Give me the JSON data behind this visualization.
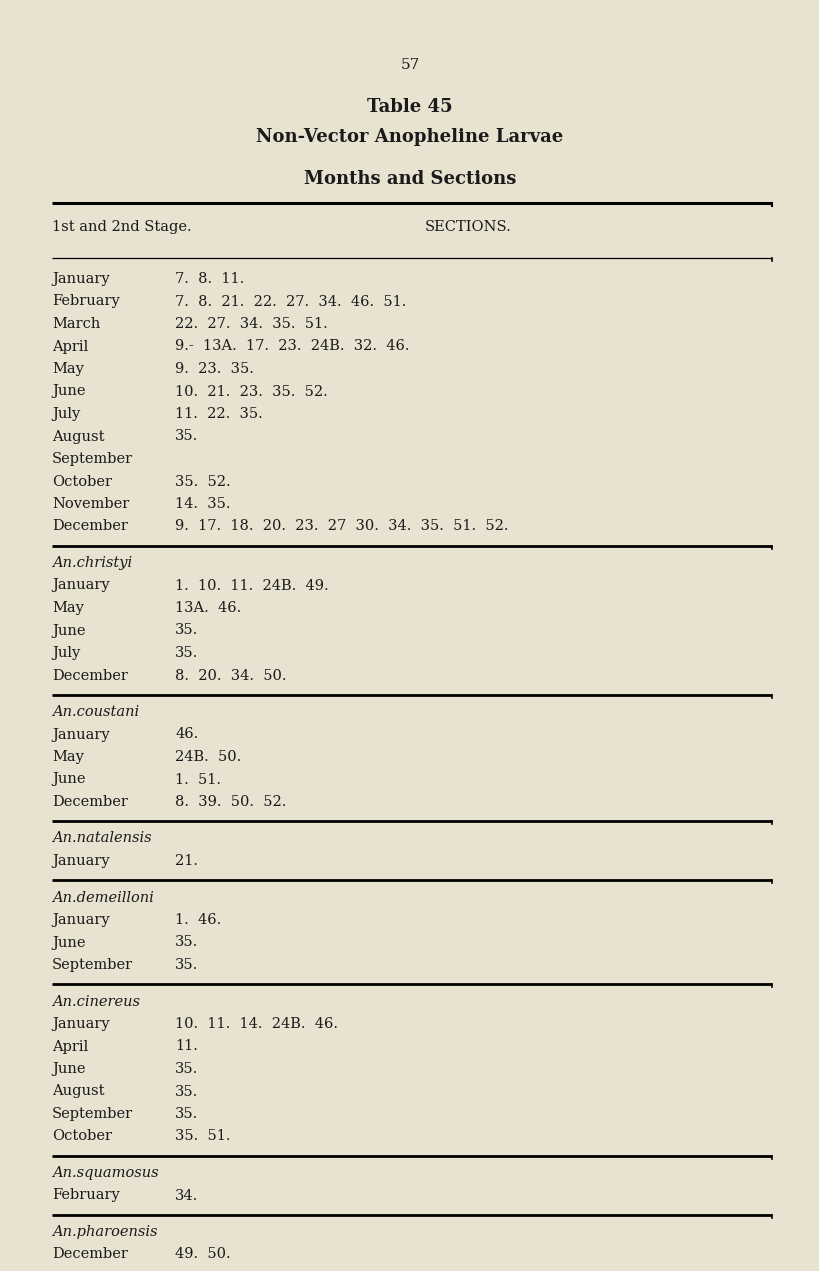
{
  "page_number": "57",
  "title1": "Table 45",
  "title2": "Non-Vector Anopheline Larvae",
  "title3": "Months and Sections",
  "bg_color": "#e8e2d0",
  "text_color": "#1a1a1a",
  "header_left": "1st and 2nd Stage.",
  "header_right": "SECTIONS.",
  "sections": [
    {
      "species": "",
      "rows": [
        [
          "January",
          "7.  8.  11."
        ],
        [
          "February",
          "7.  8.  21.  22.  27.  34.  46.  51."
        ],
        [
          "March",
          "22.  27.  34.  35.  51."
        ],
        [
          "April",
          "9.-  13A.  17.  23.  24B.  32.  46."
        ],
        [
          "May",
          "9.  23.  35."
        ],
        [
          "June",
          "10.  21.  23.  35.  52."
        ],
        [
          "July",
          "11.  22.  35."
        ],
        [
          "August",
          "35."
        ],
        [
          "September",
          ""
        ],
        [
          "October",
          "35.  52."
        ],
        [
          "November",
          "14.  35."
        ],
        [
          "December",
          "9.  17.  18.  20.  23.  27  30.  34.  35.  51.  52."
        ]
      ]
    },
    {
      "species": "An.christyi",
      "rows": [
        [
          "January",
          "1.  10.  11.  24B.  49."
        ],
        [
          "May",
          "13A.  46."
        ],
        [
          "June",
          "35."
        ],
        [
          "July",
          "35."
        ],
        [
          "December",
          "8.  20.  34.  50."
        ]
      ]
    },
    {
      "species": "An.coustani",
      "rows": [
        [
          "January",
          "46."
        ],
        [
          "May",
          "24B.  50."
        ],
        [
          "June",
          "1.  51."
        ],
        [
          "December",
          "8.  39.  50.  52."
        ]
      ]
    },
    {
      "species": "An.natalensis",
      "rows": [
        [
          "January",
          "21."
        ]
      ]
    },
    {
      "species": "An.demeilloni",
      "rows": [
        [
          "January",
          "1.  46."
        ],
        [
          "June",
          "35."
        ],
        [
          "September",
          "35."
        ]
      ]
    },
    {
      "species": "An.cinereus",
      "rows": [
        [
          "January",
          "10.  11.  14.  24B.  46."
        ],
        [
          "April",
          "11."
        ],
        [
          "June",
          "35."
        ],
        [
          "August",
          "35."
        ],
        [
          "September",
          "35."
        ],
        [
          "October",
          "35.  51."
        ]
      ]
    },
    {
      "species": "An.squamosus",
      "rows": [
        [
          "February",
          "34."
        ]
      ]
    },
    {
      "species": "An.pharoensis",
      "rows": [
        [
          "December",
          "49.  50."
        ]
      ]
    }
  ]
}
